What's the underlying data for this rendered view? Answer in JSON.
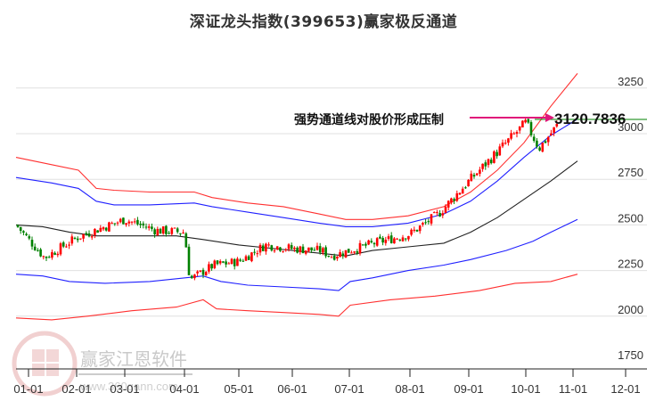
{
  "title": "深证龙头指数(399653)赢家极反通道",
  "annotation": {
    "label": "强势通道线对股价形成压制",
    "value": "3120.7836",
    "arrow_color": "#e0177a"
  },
  "watermark": {
    "brand": "赢家江恩软件",
    "url": "www.360gann.com",
    "seal_chars": [
      "江",
      "赢",
      "恩",
      "家"
    ]
  },
  "colors": {
    "up_candle": "#ff0000",
    "down_candle": "#008000",
    "outer_band": "#ff3030",
    "inner_band": "#2020ff",
    "mid_line": "#222222",
    "grid": "#e0e0e0",
    "level_line": "#008000"
  },
  "chart_data": {
    "type": "candlestick",
    "title": "深证龙头指数(399653)赢家极反通道",
    "xlabel": "",
    "ylabel": "",
    "ylim": [
      1750,
      3330
    ],
    "yticks": [
      1750,
      2000,
      2250,
      2500,
      2750,
      3000,
      3250
    ],
    "xticks": [
      "01-01",
      "02-01",
      "03-01",
      "04-01",
      "05-01",
      "06-01",
      "07-01",
      "08-01",
      "09-01",
      "10-01",
      "11-01",
      "12-01"
    ],
    "grid": "horizontal",
    "legend": "none",
    "last_value": 3120.7836,
    "annotations": [
      {
        "text": "强势通道线对股价形成压制",
        "target_value": 3120.7836
      }
    ],
    "price_path": {
      "dates": [
        "01-01",
        "01-15",
        "02-01",
        "02-15",
        "03-01",
        "03-15",
        "04-01",
        "04-05",
        "04-15",
        "05-01",
        "05-15",
        "06-01",
        "06-15",
        "07-01",
        "07-15",
        "08-01",
        "08-15",
        "09-01",
        "09-15",
        "10-01",
        "10-10",
        "10-20"
      ],
      "close": [
        2500,
        2320,
        2430,
        2480,
        2530,
        2470,
        2460,
        2200,
        2280,
        2300,
        2390,
        2370,
        2360,
        2330,
        2400,
        2450,
        2560,
        2740,
        2900,
        3060,
        2920,
        3050
      ]
    },
    "series": [
      {
        "name": "outer_upper_band",
        "color": "#ff3030",
        "points": [
          [
            0,
            2870
          ],
          [
            40,
            2830
          ],
          [
            70,
            2800
          ],
          [
            90,
            2700
          ],
          [
            110,
            2690
          ],
          [
            150,
            2680
          ],
          [
            200,
            2680
          ],
          [
            220,
            2650
          ],
          [
            260,
            2620
          ],
          [
            300,
            2600
          ],
          [
            340,
            2560
          ],
          [
            370,
            2530
          ],
          [
            400,
            2530
          ],
          [
            440,
            2550
          ],
          [
            480,
            2600
          ],
          [
            510,
            2680
          ],
          [
            540,
            2800
          ],
          [
            570,
            2950
          ],
          [
            600,
            3150
          ],
          [
            630,
            3330
          ]
        ]
      },
      {
        "name": "inner_upper_band",
        "color": "#2020ff",
        "points": [
          [
            0,
            2760
          ],
          [
            40,
            2730
          ],
          [
            70,
            2700
          ],
          [
            90,
            2630
          ],
          [
            110,
            2610
          ],
          [
            150,
            2610
          ],
          [
            200,
            2620
          ],
          [
            220,
            2600
          ],
          [
            260,
            2570
          ],
          [
            300,
            2540
          ],
          [
            340,
            2510
          ],
          [
            370,
            2490
          ],
          [
            400,
            2490
          ],
          [
            440,
            2510
          ],
          [
            480,
            2560
          ],
          [
            510,
            2630
          ],
          [
            540,
            2740
          ],
          [
            570,
            2870
          ],
          [
            600,
            2990
          ],
          [
            630,
            3080
          ]
        ]
      },
      {
        "name": "middle_line",
        "color": "#222222",
        "points": [
          [
            0,
            2500
          ],
          [
            30,
            2490
          ],
          [
            60,
            2460
          ],
          [
            90,
            2440
          ],
          [
            120,
            2440
          ],
          [
            180,
            2440
          ],
          [
            210,
            2420
          ],
          [
            250,
            2390
          ],
          [
            290,
            2370
          ],
          [
            330,
            2350
          ],
          [
            370,
            2330
          ],
          [
            400,
            2360
          ],
          [
            440,
            2380
          ],
          [
            480,
            2400
          ],
          [
            510,
            2460
          ],
          [
            540,
            2540
          ],
          [
            570,
            2640
          ],
          [
            600,
            2740
          ],
          [
            630,
            2850
          ]
        ]
      },
      {
        "name": "inner_lower_band",
        "color": "#2020ff",
        "points": [
          [
            0,
            2230
          ],
          [
            30,
            2220
          ],
          [
            60,
            2190
          ],
          [
            100,
            2180
          ],
          [
            150,
            2190
          ],
          [
            210,
            2220
          ],
          [
            230,
            2190
          ],
          [
            260,
            2170
          ],
          [
            300,
            2160
          ],
          [
            340,
            2150
          ],
          [
            362,
            2140
          ],
          [
            375,
            2190
          ],
          [
            400,
            2210
          ],
          [
            440,
            2250
          ],
          [
            480,
            2280
          ],
          [
            510,
            2310
          ],
          [
            550,
            2360
          ],
          [
            580,
            2410
          ],
          [
            600,
            2460
          ],
          [
            630,
            2530
          ]
        ]
      },
      {
        "name": "outer_lower_band",
        "color": "#ff3030",
        "points": [
          [
            0,
            1990
          ],
          [
            40,
            1980
          ],
          [
            80,
            2000
          ],
          [
            130,
            2030
          ],
          [
            180,
            2050
          ],
          [
            210,
            2090
          ],
          [
            225,
            2040
          ],
          [
            260,
            2030
          ],
          [
            300,
            2020
          ],
          [
            340,
            2010
          ],
          [
            362,
            2000
          ],
          [
            375,
            2060
          ],
          [
            420,
            2090
          ],
          [
            470,
            2110
          ],
          [
            520,
            2140
          ],
          [
            560,
            2180
          ],
          [
            600,
            2190
          ],
          [
            630,
            2230
          ]
        ]
      }
    ]
  }
}
